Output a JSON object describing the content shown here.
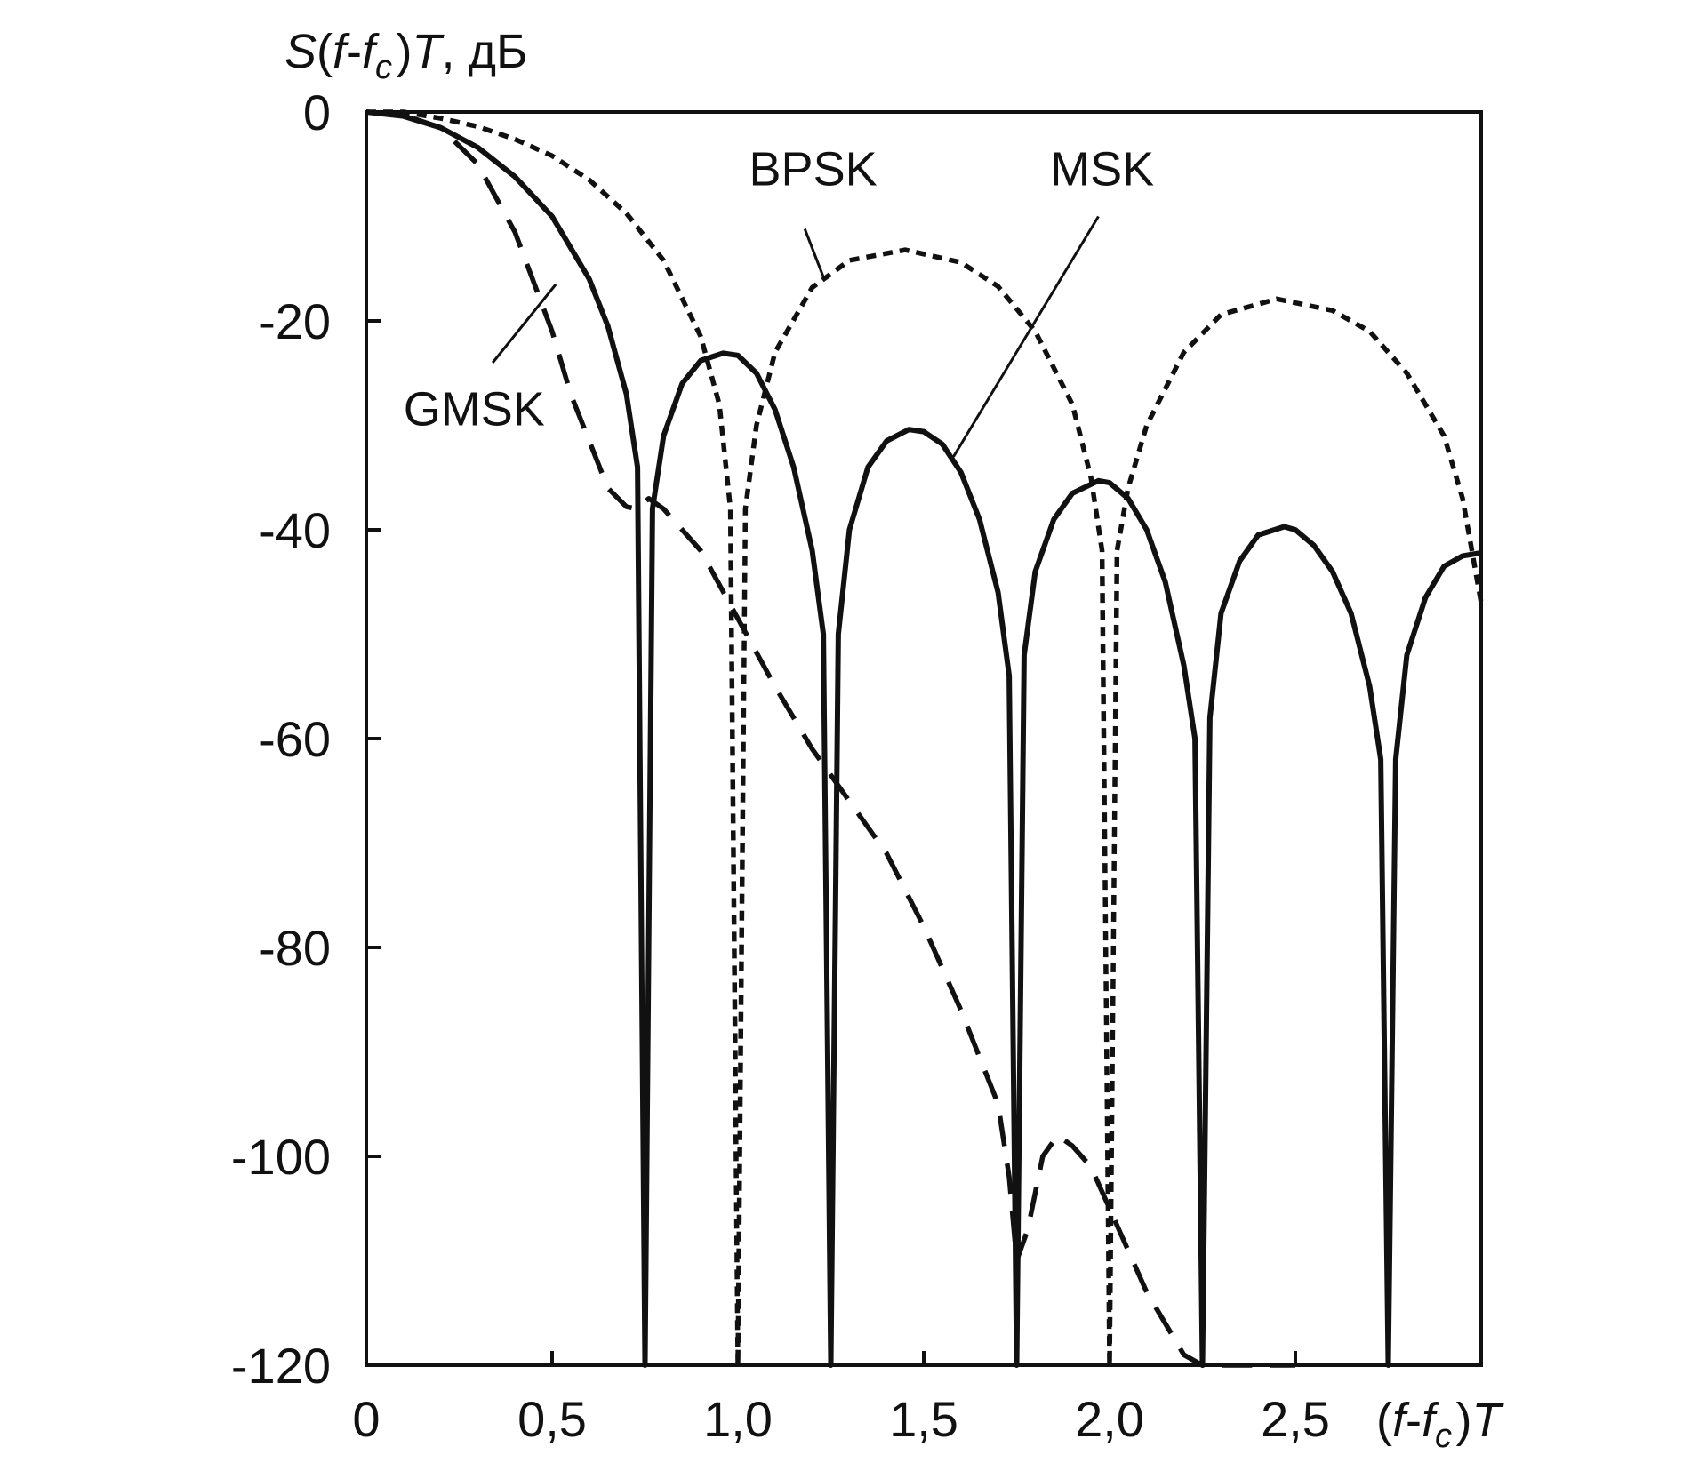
{
  "chart_data": {
    "type": "line",
    "ylabel": "S(f-f_c)T, дБ",
    "xlabel": "(f-f_c)T",
    "xlim": [
      0,
      3.0
    ],
    "ylim": [
      -120,
      0
    ],
    "x_ticks": [
      0,
      0.5,
      1.0,
      1.5,
      2.0,
      2.5
    ],
    "x_tick_labels": [
      "0",
      "0,5",
      "1,0",
      "1,5",
      "2,0",
      "2,5"
    ],
    "y_ticks": [
      0,
      -20,
      -40,
      -60,
      -80,
      -100,
      -120
    ],
    "y_tick_labels": [
      "0",
      "-20",
      "-40",
      "-60",
      "-80",
      "-100",
      "-120"
    ],
    "grid": false,
    "series": [
      {
        "name": "BPSK",
        "style": "dotted",
        "x": [
          0,
          0.1,
          0.2,
          0.3,
          0.4,
          0.5,
          0.6,
          0.7,
          0.8,
          0.9,
          0.95,
          0.98,
          1.0,
          1.02,
          1.05,
          1.1,
          1.2,
          1.3,
          1.45,
          1.6,
          1.7,
          1.8,
          1.9,
          1.95,
          1.98,
          2.0,
          2.02,
          2.05,
          2.1,
          2.2,
          2.3,
          2.45,
          2.6,
          2.7,
          2.8,
          2.9,
          2.95,
          3.0
        ],
        "y": [
          0,
          0,
          -0.6,
          -1.4,
          -2.6,
          -4.2,
          -6.5,
          -9.7,
          -14.2,
          -21.5,
          -28,
          -38,
          -120,
          -38,
          -30,
          -23,
          -16.8,
          -14.2,
          -13.2,
          -14.4,
          -16.7,
          -21,
          -28,
          -35,
          -42,
          -120,
          -42,
          -36,
          -30,
          -23,
          -19.4,
          -17.9,
          -19,
          -21,
          -25,
          -31,
          -37,
          -47
        ]
      },
      {
        "name": "MSK",
        "style": "solid",
        "x": [
          0,
          0.1,
          0.2,
          0.3,
          0.4,
          0.5,
          0.6,
          0.65,
          0.7,
          0.73,
          0.75,
          0.77,
          0.8,
          0.85,
          0.9,
          0.96,
          1.0,
          1.05,
          1.1,
          1.15,
          1.2,
          1.23,
          1.25,
          1.27,
          1.3,
          1.35,
          1.4,
          1.46,
          1.5,
          1.55,
          1.6,
          1.65,
          1.7,
          1.73,
          1.75,
          1.77,
          1.8,
          1.85,
          1.9,
          1.97,
          2.0,
          2.05,
          2.1,
          2.15,
          2.2,
          2.23,
          2.25,
          2.27,
          2.3,
          2.35,
          2.4,
          2.47,
          2.5,
          2.55,
          2.6,
          2.65,
          2.7,
          2.73,
          2.75,
          2.77,
          2.8,
          2.85,
          2.9,
          2.95,
          3.0
        ],
        "y": [
          0,
          -0.4,
          -1.5,
          -3.4,
          -6.2,
          -10,
          -16,
          -20.5,
          -27,
          -34,
          -120,
          -38,
          -31,
          -26,
          -23.8,
          -23.1,
          -23.3,
          -25,
          -28.5,
          -34,
          -42,
          -50,
          -120,
          -50,
          -40,
          -34,
          -31.5,
          -30.4,
          -30.6,
          -31.8,
          -34.5,
          -39,
          -46,
          -54,
          -120,
          -52,
          -44,
          -39,
          -36.5,
          -35.3,
          -35.5,
          -37,
          -40,
          -45,
          -53,
          -60,
          -120,
          -58,
          -48,
          -43,
          -40.5,
          -39.7,
          -40,
          -41.5,
          -44,
          -48,
          -55,
          -62,
          -120,
          -62,
          -52,
          -46.5,
          -43.5,
          -42.5,
          -42.2
        ]
      },
      {
        "name": "GMSK",
        "style": "dashed",
        "x": [
          0,
          0.1,
          0.2,
          0.3,
          0.4,
          0.5,
          0.55,
          0.6,
          0.65,
          0.7,
          0.73,
          0.76,
          0.8,
          0.9,
          1.0,
          1.1,
          1.2,
          1.25,
          1.3,
          1.4,
          1.5,
          1.6,
          1.7,
          1.73,
          1.75,
          1.78,
          1.82,
          1.86,
          1.9,
          1.95,
          2.0,
          2.1,
          2.2,
          2.25,
          2.3,
          2.4,
          2.5
        ],
        "y": [
          0,
          -0.3,
          -1.5,
          -5,
          -11.5,
          -21,
          -27,
          -31.5,
          -36,
          -37.8,
          -38,
          -37,
          -38,
          -42,
          -48.5,
          -55,
          -61,
          -63.5,
          -66,
          -71,
          -78,
          -86,
          -95,
          -102,
          -110,
          -107,
          -100,
          -98,
          -99,
          -101,
          -105,
          -113,
          -119,
          -120,
          -120,
          -120,
          -120
        ]
      }
    ]
  }
}
